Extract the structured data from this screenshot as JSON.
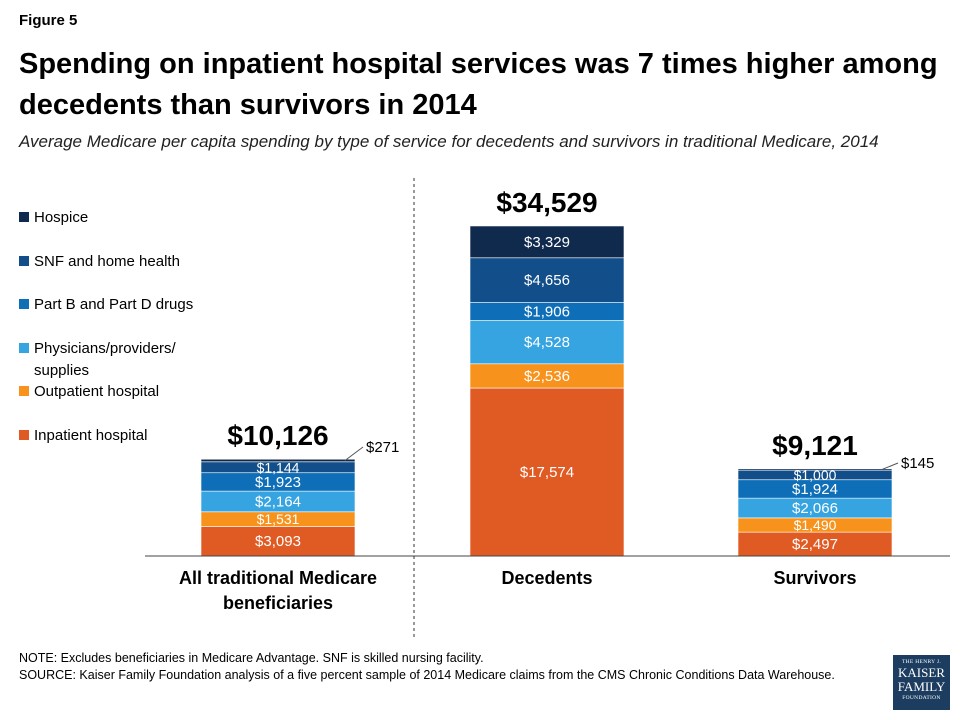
{
  "figure_label": "Figure 5",
  "title": "Spending on inpatient hospital services was 7 times higher among decedents than survivors in 2014",
  "subtitle": "Average Medicare per capita spending by type of service for decedents and survivors in traditional Medicare, 2014",
  "note": "NOTE: Excludes beneficiaries in Medicare Advantage. SNF is skilled nursing facility.",
  "source": "SOURCE: Kaiser Family Foundation analysis of a five percent sample of 2014 Medicare claims from the CMS Chronic Conditions Data Warehouse.",
  "logo": {
    "line1": "THE HENRY J.",
    "line2": "KAISER",
    "line3": "FAMILY",
    "line4": "FOUNDATION"
  },
  "colors": {
    "Inpatient hospital": "#e05a24",
    "Outpatient hospital": "#f7931d",
    "Physicians/providers/ supplies": "#35a4e0",
    "Part B and Part D drugs": "#0e6fb8",
    "SNF and home health": "#124f8a",
    "Hospice": "#102a4e"
  },
  "chart_data": {
    "type": "bar",
    "stacked": true,
    "categories": [
      "All traditional Medicare beneficiaries",
      "Decedents",
      "Survivors"
    ],
    "totals": [
      "$10,126",
      "$34,529",
      "$9,121"
    ],
    "series": [
      {
        "name": "Inpatient hospital",
        "values": [
          3093,
          17574,
          2497
        ],
        "labels": [
          "$3,093",
          "$17,574",
          "$2,497"
        ]
      },
      {
        "name": "Outpatient hospital",
        "values": [
          1531,
          2536,
          1490
        ],
        "labels": [
          "$1,531",
          "$2,536",
          "$1,490"
        ]
      },
      {
        "name": "Physicians/providers/ supplies",
        "values": [
          2164,
          4528,
          2066
        ],
        "labels": [
          "$2,164",
          "$4,528",
          "$2,066"
        ]
      },
      {
        "name": "Part B and Part D drugs",
        "values": [
          1923,
          1906,
          1924
        ],
        "labels": [
          "$1,923",
          "$1,906",
          "$1,924"
        ]
      },
      {
        "name": "SNF and home health",
        "values": [
          1144,
          4656,
          1000
        ],
        "labels": [
          "$1,144",
          "$4,656",
          "$1,000"
        ]
      },
      {
        "name": "Hospice",
        "values": [
          271,
          3329,
          145
        ],
        "labels": [
          "$271",
          "$3,329",
          "$145"
        ]
      }
    ],
    "legend_position": "left",
    "gridlines": false
  }
}
